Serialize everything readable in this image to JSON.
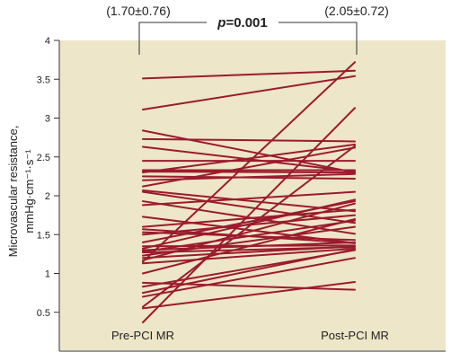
{
  "chart_data": {
    "type": "line",
    "subtype": "paired-slope",
    "categories": [
      "Pre-PCI MR",
      "Post-PCI MR"
    ],
    "ylabel_line1": "Microvascular resistance,",
    "ylabel_line2": "mmHg·cm⁻¹·s⁻¹",
    "ylim": [
      0,
      4
    ],
    "yticks": [
      "0.5",
      "1",
      "1.5",
      "2",
      "2.5",
      "3",
      "3.5",
      "4"
    ],
    "ytick_values": [
      0.5,
      1,
      1.5,
      2,
      2.5,
      3,
      3.5,
      4
    ],
    "grid": false,
    "annotations": {
      "pre_mean": "(1.70±0.76)",
      "post_mean": "(2.05±0.72)",
      "p_prefix": "p",
      "p_suffix": "=0.001"
    },
    "colors": {
      "plot_background": "#ede6c8",
      "line": "#9b1b2e",
      "axis": "#333333"
    },
    "pairs": [
      [
        3.51,
        3.61
      ],
      [
        3.11,
        3.54
      ],
      [
        2.84,
        2.3
      ],
      [
        2.73,
        2.7
      ],
      [
        2.63,
        2.31
      ],
      [
        2.45,
        2.45
      ],
      [
        2.33,
        2.33
      ],
      [
        2.31,
        2.3
      ],
      [
        2.25,
        2.22
      ],
      [
        2.2,
        2.28
      ],
      [
        2.12,
        2.62
      ],
      [
        2.07,
        1.8
      ],
      [
        1.93,
        1.51
      ],
      [
        1.88,
        2.05
      ],
      [
        1.6,
        1.82
      ],
      [
        1.57,
        1.39
      ],
      [
        1.53,
        1.43
      ],
      [
        1.5,
        1.75
      ],
      [
        1.4,
        1.93
      ],
      [
        1.35,
        1.36
      ],
      [
        1.32,
        1.95
      ],
      [
        1.3,
        1.4
      ],
      [
        1.28,
        1.68
      ],
      [
        1.27,
        1.34
      ],
      [
        1.23,
        1.6
      ],
      [
        1.2,
        1.35
      ],
      [
        1.17,
        1.9
      ],
      [
        1.15,
        3.72
      ],
      [
        1.13,
        1.32
      ],
      [
        0.88,
        0.79
      ],
      [
        0.83,
        1.3
      ],
      [
        0.75,
        1.31
      ],
      [
        0.7,
        1.2
      ],
      [
        0.57,
        2.64
      ],
      [
        0.55,
        0.89
      ],
      [
        0.37,
        3.13
      ],
      [
        1.73,
        1.39
      ],
      [
        2.05,
        1.65
      ],
      [
        2.3,
        2.66
      ],
      [
        1.0,
        1.7
      ]
    ]
  }
}
